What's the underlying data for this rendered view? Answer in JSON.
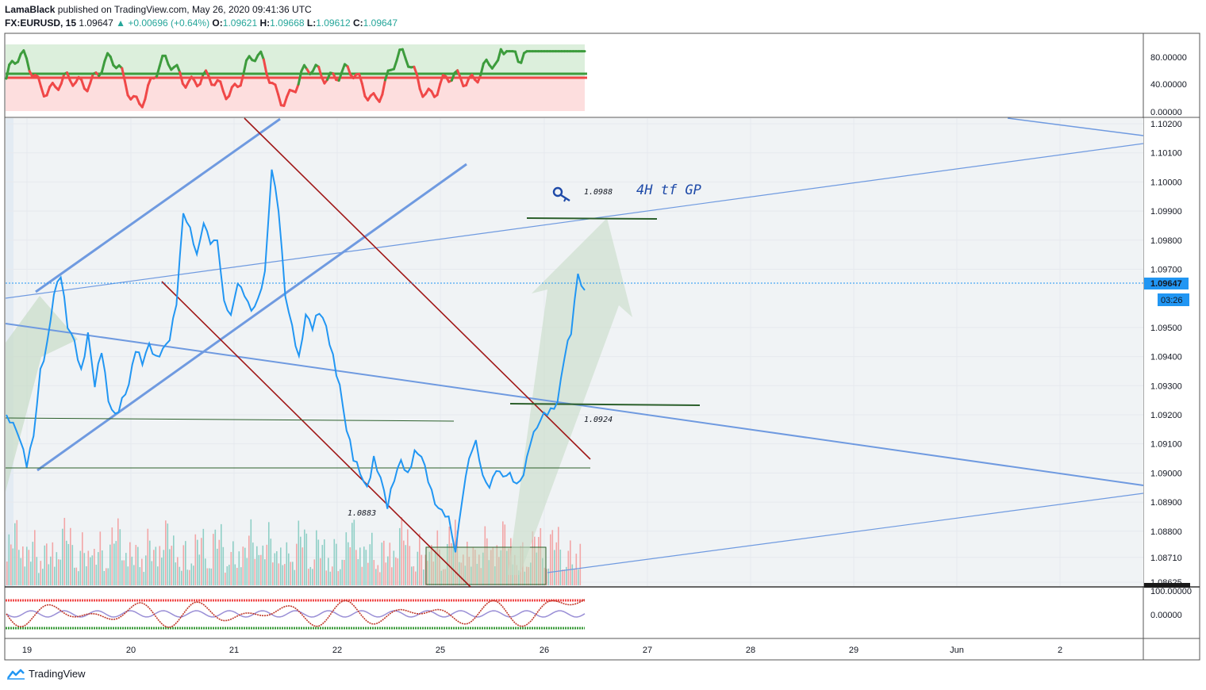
{
  "header": {
    "author": "LamaBlack",
    "published": "published on TradingView.com, May 26, 2020 09:41:36 UTC",
    "symbol": "FX:EURUSD, 15",
    "last": "1.09647",
    "change": "▲ +0.00696 (+0.64%)",
    "o_label": "O:",
    "o": "1.09621",
    "h_label": "H:",
    "h": "1.09668",
    "l_label": "L:",
    "l": "1.09612",
    "c_label": "C:",
    "c": "1.09647"
  },
  "price_badge": {
    "price": "1.09647",
    "countdown": "03:26"
  },
  "annotations": {
    "target_price": "1.0988",
    "target_text": "4H tf GP",
    "support_price": "1.0924",
    "low_price": "1.0883"
  },
  "footer": {
    "brand": "TradingView"
  },
  "colors": {
    "price_line": "#2196f3",
    "trend_blue": "#6f9ae0",
    "channel_red": "#a01818",
    "level_green": "#2b5f2b",
    "arrow_fill": "#c8dcc8",
    "osc_green": "#3d9c3d",
    "osc_red": "#f04848"
  },
  "chart_data": [
    {
      "type": "line",
      "name": "upper-oscillator",
      "ylim": [
        0,
        100
      ],
      "y_ticks": [
        "80.00000",
        "40.00000",
        "0.00000"
      ],
      "levels": [
        52,
        45
      ]
    },
    {
      "type": "line",
      "name": "main-price",
      "instrument": "FX:EURUSD",
      "timeframe": "15",
      "ylim": [
        1.08605,
        1.10245
      ],
      "y_ticks": [
        "1.10200",
        "1.10100",
        "1.10000",
        "1.09900",
        "1.09800",
        "1.09700",
        "1.09647",
        "1.09500",
        "1.09400",
        "1.09300",
        "1.09200",
        "1.09100",
        "1.09000",
        "1.08900",
        "1.08800",
        "1.08710",
        "1.08625"
      ],
      "x_ticks": [
        "19",
        "20",
        "21",
        "22",
        "25",
        "26",
        "27",
        "28",
        "29",
        "Jun",
        "2"
      ],
      "series": [
        {
          "values": [
            1.092,
            1.0918,
            1.0912,
            1.0902,
            1.0912,
            1.0935,
            1.0945,
            1.0962,
            1.0968,
            1.095,
            1.0945,
            1.0935,
            1.0948,
            1.093,
            1.0942,
            1.0925,
            1.092,
            1.0925,
            1.093,
            1.0942,
            1.0938,
            1.0945,
            1.094,
            1.0942,
            1.0945,
            1.0958,
            1.099,
            1.0985,
            1.0975,
            1.0985,
            1.0978,
            1.098,
            1.096,
            1.0955,
            1.0965,
            1.096,
            1.0955,
            1.096,
            1.097,
            1.1005,
            1.099,
            1.096,
            1.095,
            1.094,
            1.0955,
            1.095,
            1.0955,
            1.095,
            1.094,
            1.093,
            1.0915,
            1.0905,
            1.09,
            1.0895,
            1.0905,
            1.0898,
            1.0888,
            1.0898,
            1.0905,
            1.09,
            1.0907,
            1.0905,
            1.0897,
            1.089,
            1.0888,
            1.0885,
            1.0872,
            1.089,
            1.0905,
            1.0912,
            1.09,
            1.0895,
            1.09,
            1.0898,
            1.09,
            1.0897,
            1.09,
            1.091,
            1.0915,
            1.092,
            1.0922,
            1.0925,
            1.094,
            1.0948,
            1.0968,
            1.0962
          ]
        }
      ]
    },
    {
      "type": "bar",
      "name": "volume",
      "values": []
    },
    {
      "type": "line",
      "name": "lower-oscillator",
      "y_ticks": [
        "100.00000",
        "0.00000"
      ]
    }
  ]
}
